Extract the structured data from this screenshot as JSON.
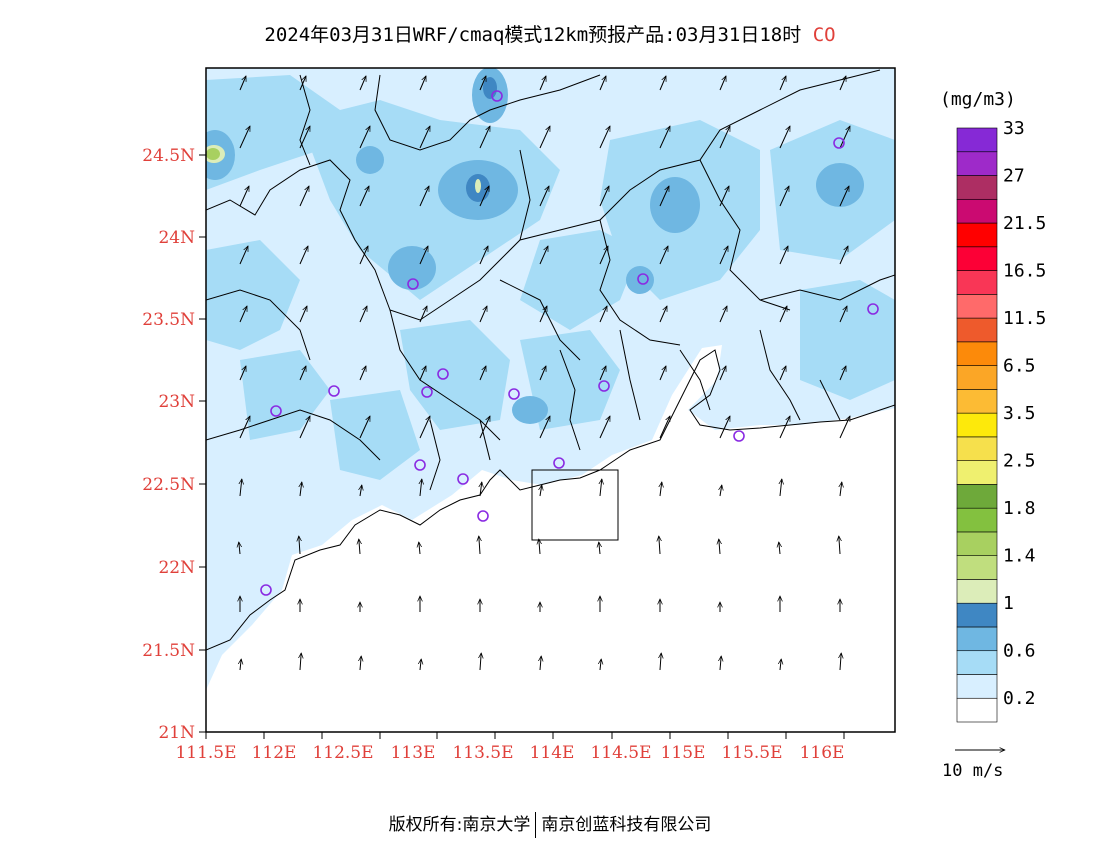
{
  "title": {
    "text": "2024年03月31日WRF/cmaq模式12km预报产品:03月31日18时",
    "species": "CO"
  },
  "axes": {
    "lat_ticks": [
      "24.5N",
      "24N",
      "23.5N",
      "23N",
      "22.5N",
      "22N",
      "21.5N",
      "21N"
    ],
    "lon_ticks": [
      "111.5E",
      "112E",
      "112.5E",
      "113E",
      "113.5E",
      "114E",
      "114.5E",
      "115E",
      "115.5E",
      "116E"
    ]
  },
  "legend": {
    "unit": "(mg/m3)",
    "colors": [
      "#ffffff",
      "#d8efff",
      "#a6dcf6",
      "#6fb7e2",
      "#3f87c3",
      "#dcedb9",
      "#c0de7e",
      "#a8d060",
      "#83c13f",
      "#6ea93a",
      "#eff06f",
      "#f6e04c",
      "#fde90b",
      "#fcbb34",
      "#fba626",
      "#fc8a0a",
      "#ee5a2c",
      "#ff6a6a",
      "#f93656",
      "#fc0036",
      "#ff0000",
      "#cb0a71",
      "#ad2e63",
      "#9e2ac9",
      "#8629d6"
    ],
    "labels": [
      {
        "text": "0.2",
        "boundary": 1
      },
      {
        "text": "0.6",
        "boundary": 3
      },
      {
        "text": "1",
        "boundary": 5
      },
      {
        "text": "1.4",
        "boundary": 7
      },
      {
        "text": "1.8",
        "boundary": 9
      },
      {
        "text": "2.5",
        "boundary": 11
      },
      {
        "text": "3.5",
        "boundary": 13
      },
      {
        "text": "6.5",
        "boundary": 15
      },
      {
        "text": "11.5",
        "boundary": 17
      },
      {
        "text": "16.5",
        "boundary": 19
      },
      {
        "text": "21.5",
        "boundary": 21
      },
      {
        "text": "27",
        "boundary": 23
      },
      {
        "text": "33",
        "boundary": 25
      }
    ]
  },
  "wind_reference": {
    "label": "10 m/s"
  },
  "stations_color": "#8a2be2",
  "copyright": {
    "left": "版权所有:南京大学",
    "right": "南京创蓝科技有限公司"
  }
}
